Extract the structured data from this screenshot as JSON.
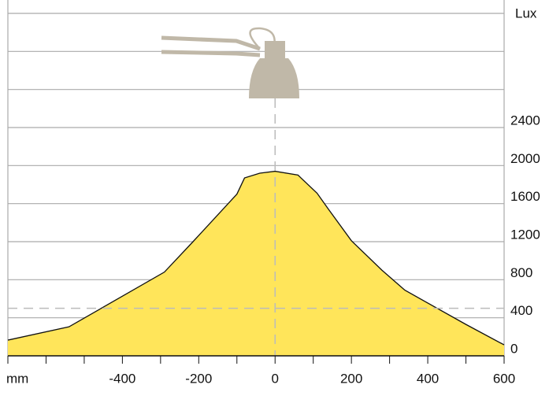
{
  "chart_data": {
    "type": "area",
    "y_label": "Lux",
    "x_label": "mm",
    "x": [
      -700,
      -540,
      -290,
      -215,
      -100,
      -80,
      -40,
      0,
      60,
      110,
      140,
      200,
      280,
      340,
      500,
      600
    ],
    "series": [
      {
        "name": null,
        "color": "#ffe55a",
        "values": [
          165,
          305,
          880,
          1200,
          1700,
          1870,
          1920,
          1940,
          1900,
          1710,
          1540,
          1210,
          900,
          690,
          330,
          115
        ]
      }
    ],
    "xlim": [
      -700,
      600
    ],
    "xticks": [
      {
        "value": -600,
        "label": null
      },
      {
        "value": -500,
        "label": null
      },
      -400,
      {
        "value": -300,
        "label": null
      },
      -200,
      {
        "value": -100,
        "label": null
      },
      0,
      {
        "value": 100,
        "label": null
      },
      200,
      {
        "value": 300,
        "label": null
      },
      400,
      {
        "value": 500,
        "label": null
      },
      600
    ],
    "ylim": [
      0,
      3600
    ],
    "yticks": [
      0,
      400,
      800,
      1200,
      1600,
      2000,
      2400,
      {
        "value": 2800,
        "label": null
      },
      {
        "value": 3200,
        "label": null
      },
      {
        "value": 3600,
        "label": null
      }
    ],
    "reference_y": 500,
    "reference_x": 0,
    "grid": true
  }
}
